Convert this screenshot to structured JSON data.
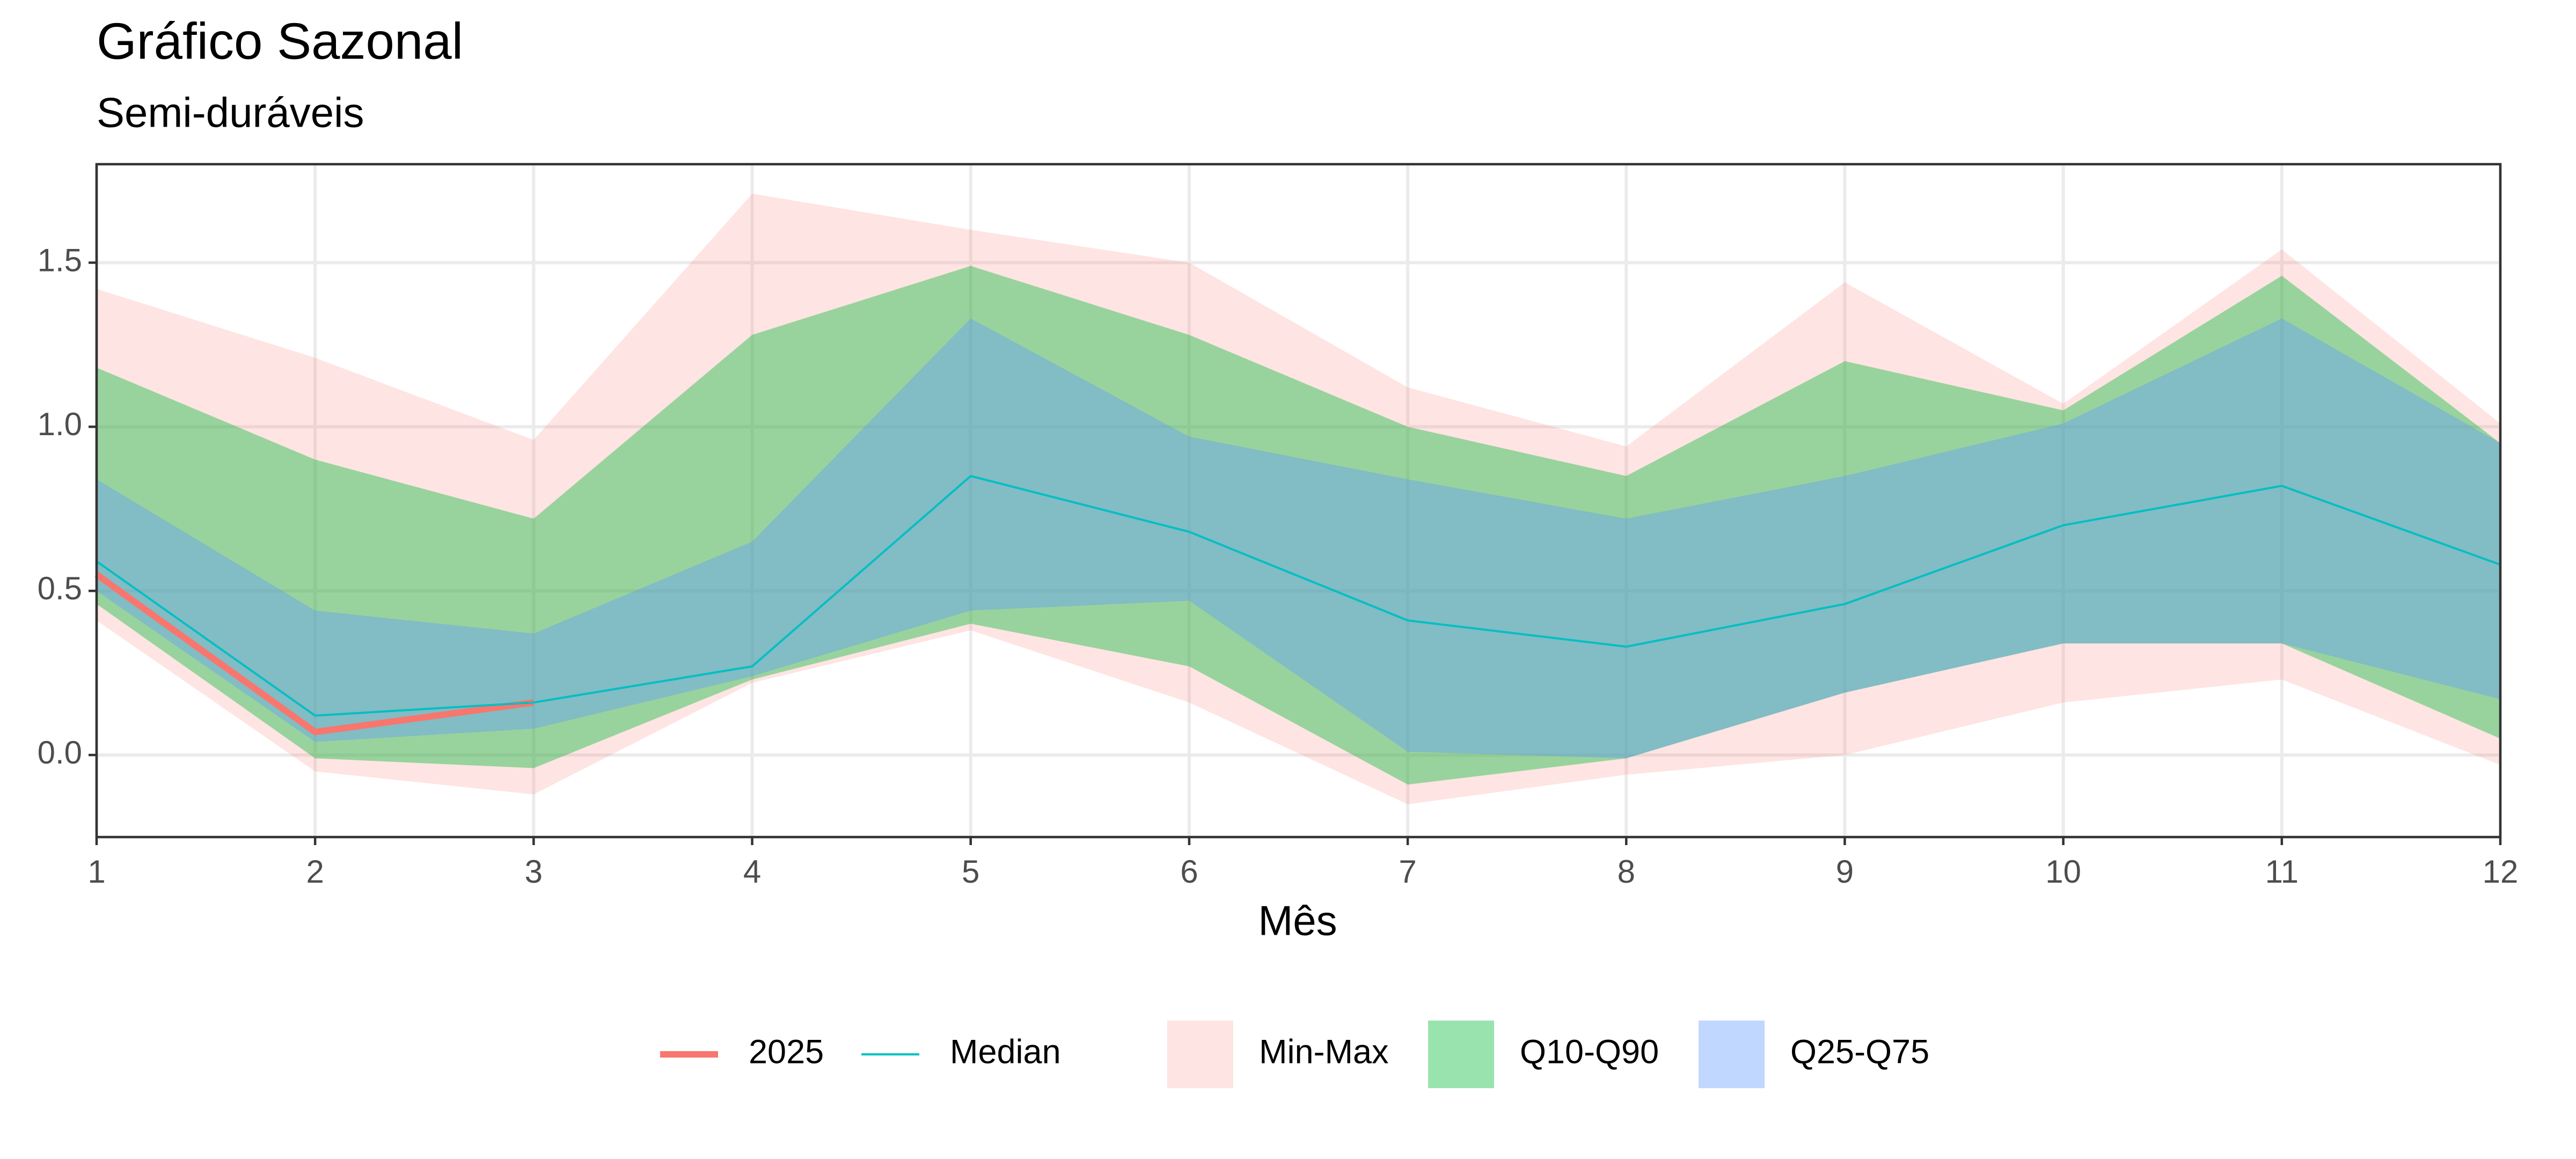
{
  "chart_data": {
    "type": "line",
    "title": "Gráfico Sazonal",
    "subtitle": "Semi-duráveis",
    "x_label": "Mês",
    "x": [
      1,
      2,
      3,
      4,
      5,
      6,
      7,
      8,
      9,
      10,
      11,
      12
    ],
    "xlim": [
      1,
      12
    ],
    "xticks": [
      1,
      2,
      3,
      4,
      5,
      6,
      7,
      8,
      9,
      10,
      11,
      12
    ],
    "ylim": [
      -0.25,
      1.8
    ],
    "yticks": [
      {
        "value": 0,
        "label": "0.0"
      },
      0.5,
      {
        "value": 1,
        "label": "1.0"
      },
      1.5
    ],
    "grid": true,
    "legend": "bottom",
    "bands": [
      {
        "name": "Min-Max",
        "color": "#F8766D",
        "opacity": 0.2,
        "lower": [
          0.41,
          -0.05,
          -0.12,
          0.22,
          0.38,
          0.16,
          -0.15,
          -0.06,
          0.0,
          0.16,
          0.23,
          -0.03
        ],
        "upper": [
          1.42,
          1.21,
          0.96,
          1.71,
          1.6,
          1.5,
          1.12,
          0.94,
          1.44,
          1.07,
          1.54,
          1.01
        ]
      },
      {
        "name": "Q10-Q90",
        "color": "#00BA38",
        "opacity": 0.4,
        "lower": [
          0.46,
          -0.01,
          -0.04,
          0.23,
          0.4,
          0.27,
          -0.09,
          -0.01,
          0.19,
          0.34,
          0.34,
          0.05
        ],
        "upper": [
          1.18,
          0.9,
          0.72,
          1.28,
          1.49,
          1.28,
          1.0,
          0.85,
          1.2,
          1.05,
          1.46,
          0.95
        ]
      },
      {
        "name": "Q25-Q75",
        "color": "#619CFF",
        "opacity": 0.4,
        "lower": [
          0.5,
          0.04,
          0.08,
          0.24,
          0.44,
          0.47,
          0.01,
          -0.01,
          0.19,
          0.34,
          0.34,
          0.17
        ],
        "upper": [
          0.84,
          0.44,
          0.37,
          0.65,
          1.33,
          0.97,
          0.84,
          0.72,
          0.85,
          1.01,
          1.33,
          0.95
        ]
      }
    ],
    "series": [
      {
        "name": "2025",
        "color": "#F8766D",
        "width": 4,
        "values": [
          0.55,
          0.07,
          0.16,
          null,
          null,
          null,
          null,
          null,
          null,
          null,
          null,
          null
        ]
      },
      {
        "name": "Median",
        "color": "#00BFC4",
        "width": 1.3,
        "values": [
          0.59,
          0.12,
          0.16,
          0.27,
          0.85,
          0.68,
          0.41,
          0.33,
          0.46,
          0.7,
          0.82,
          0.58
        ]
      }
    ]
  }
}
